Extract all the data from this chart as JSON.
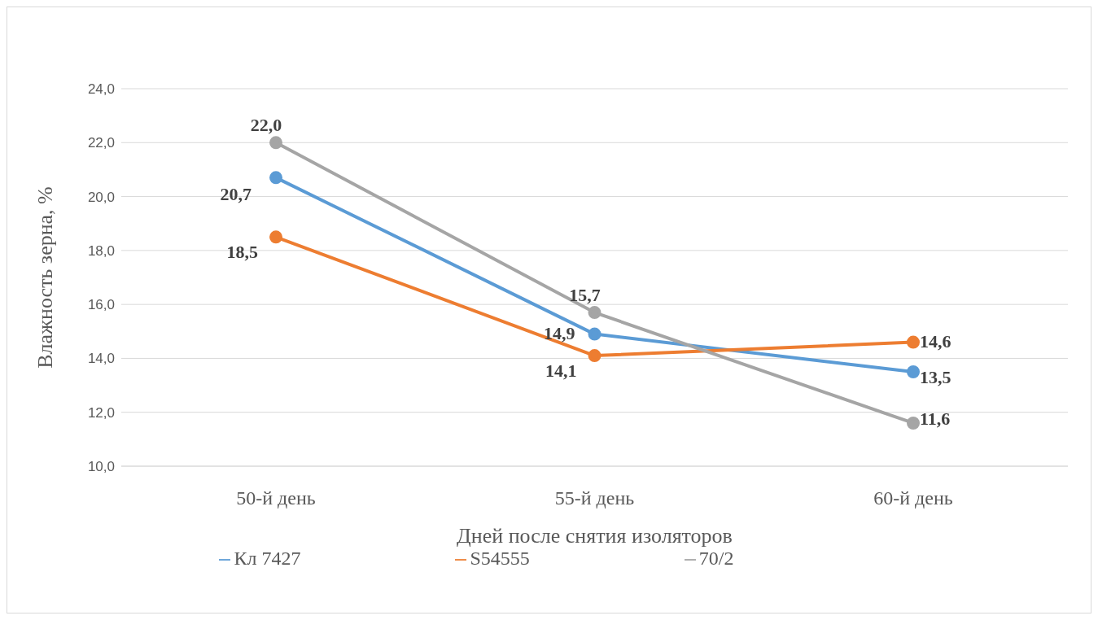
{
  "chart_data": {
    "type": "line",
    "categories": [
      "50-й день",
      "55-й день",
      "60-й день"
    ],
    "xlabel": "Дней после снятия изоляторов",
    "ylabel": "Влажность зерна, %",
    "series": [
      {
        "name": "Кл 7427",
        "color": "#5b9bd5",
        "values": [
          20.7,
          14.9,
          13.5
        ],
        "value_labels": [
          "20,7",
          "14,9",
          "13,5"
        ]
      },
      {
        "name": "S54555",
        "color": "#ed7d31",
        "values": [
          18.5,
          14.1,
          14.6
        ],
        "value_labels": [
          "18,5",
          "14,1",
          "14,6"
        ]
      },
      {
        "name": "70/2",
        "color": "#a5a5a5",
        "values": [
          22.0,
          15.7,
          11.6
        ],
        "value_labels": [
          "22,0",
          "15,7",
          "11,6"
        ]
      }
    ],
    "ylim": [
      10,
      24
    ],
    "yticks": [
      {
        "value": 10,
        "label": "10,0"
      },
      {
        "value": 12,
        "label": "12,0"
      },
      {
        "value": 14,
        "label": "14,0"
      },
      {
        "value": 16,
        "label": "16,0"
      },
      {
        "value": 18,
        "label": "18,0"
      },
      {
        "value": 20,
        "label": "20,0"
      },
      {
        "value": 22,
        "label": "22,0"
      },
      {
        "value": 24,
        "label": "24,0"
      }
    ],
    "grid": "y",
    "legend": "bottom",
    "marker": "circle",
    "line_style": "solid"
  }
}
